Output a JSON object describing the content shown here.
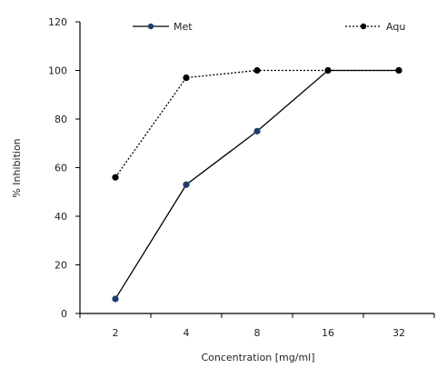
{
  "chart_data": {
    "type": "line",
    "title": "",
    "xlabel": "Concentration [mg/ml]",
    "ylabel": "% Inhibition",
    "categories": [
      "2",
      "4",
      "8",
      "16",
      "32"
    ],
    "ylim": [
      0,
      120
    ],
    "yticks": [
      "0",
      "20",
      "40",
      "60",
      "80",
      "100",
      "120"
    ],
    "grid": false,
    "legend_position": "top",
    "series": [
      {
        "name": "Met",
        "values": [
          6,
          53,
          75,
          100,
          100
        ],
        "color": "#000000",
        "marker_color": "#1f3d6b",
        "line_style": "solid"
      },
      {
        "name": "Aqu",
        "values": [
          56,
          97,
          100,
          100,
          100
        ],
        "color": "#000000",
        "marker_color": "#000000",
        "line_style": "dotted"
      }
    ]
  }
}
